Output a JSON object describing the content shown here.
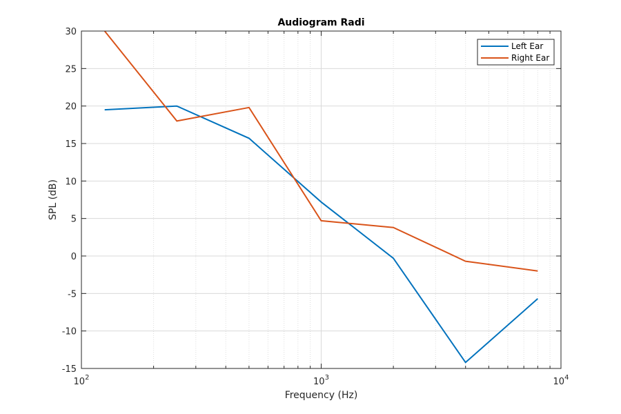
{
  "chart_data": {
    "type": "line",
    "title": "Audiogram Radi",
    "xlabel": "Frequency (Hz)",
    "ylabel": "SPL (dB)",
    "xscale": "log",
    "xlim": [
      100,
      10000
    ],
    "ylim": [
      -15,
      30
    ],
    "x": [
      125,
      250,
      500,
      1000,
      2000,
      4000,
      8000
    ],
    "xticks": [
      {
        "value": 100,
        "base": "10",
        "exp": "2"
      },
      {
        "value": 1000,
        "base": "10",
        "exp": "3"
      },
      {
        "value": 10000,
        "base": "10",
        "exp": "4"
      }
    ],
    "yticks": [
      {
        "value": 30,
        "label": "30"
      },
      {
        "value": 25,
        "label": "25"
      },
      {
        "value": 20,
        "label": "20"
      },
      {
        "value": 15,
        "label": "15"
      },
      {
        "value": 10,
        "label": "10"
      },
      {
        "value": 5,
        "label": "5"
      },
      {
        "value": 0,
        "label": "0"
      },
      {
        "value": -5,
        "label": "-5"
      },
      {
        "value": -10,
        "label": "-10"
      },
      {
        "value": -15,
        "label": "-15"
      }
    ],
    "grid": true,
    "minor_grid": true,
    "legend_position": "top-right",
    "series": [
      {
        "name": "Left Ear",
        "color": "#0072BD",
        "values": [
          19.5,
          20.0,
          15.7,
          7.2,
          -0.3,
          -14.2,
          -5.7
        ]
      },
      {
        "name": "Right Ear",
        "color": "#D95319",
        "values": [
          30.0,
          18.0,
          19.8,
          4.7,
          3.8,
          -0.7,
          -2.0
        ]
      }
    ]
  }
}
